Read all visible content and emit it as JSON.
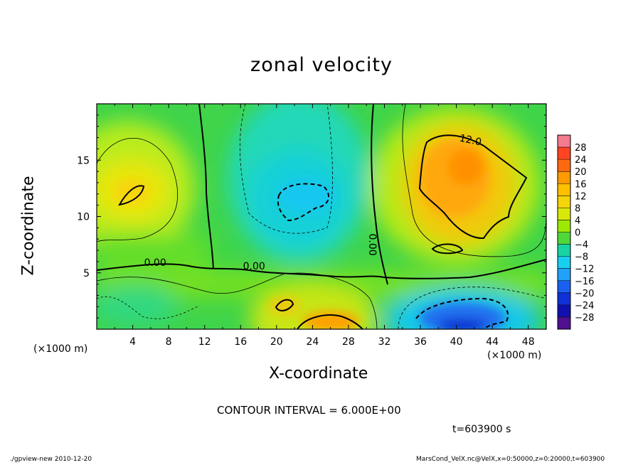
{
  "chart_data": {
    "type": "heatmap",
    "title": "zonal velocity",
    "xlabel": "X-coordinate",
    "ylabel": "Z-coordinate",
    "x_unit_label": "(×1000 m)",
    "x_ticks": [
      4,
      8,
      12,
      16,
      20,
      24,
      28,
      32,
      36,
      40,
      44,
      48
    ],
    "y_ticks": [
      5,
      10,
      15
    ],
    "xlim": [
      0,
      50
    ],
    "ylim": [
      0,
      20
    ],
    "colorbar_levels": [
      28,
      24,
      20,
      16,
      12,
      8,
      4,
      0,
      -4,
      -8,
      -12,
      -16,
      -20,
      -24,
      -28
    ],
    "colorbar_colors": [
      "#f47a8e",
      "#ff4422",
      "#ff6a10",
      "#ff9a00",
      "#ffc000",
      "#f5d40a",
      "#d9e80a",
      "#9ee805",
      "#4fd83a",
      "#18d3a4",
      "#18cff0",
      "#20a0f8",
      "#1860f0",
      "#1030d8",
      "#1010b0",
      "#501090"
    ],
    "contour_labels": [
      {
        "text": "0.00",
        "x": 6.5,
        "z": 5.6
      },
      {
        "text": "0.00",
        "x": 17.5,
        "z": 5.3
      },
      {
        "text": "0.00",
        "x": 30.3,
        "z": 7.5
      },
      {
        "text": "12.0",
        "x": 41.5,
        "z": 16.5
      }
    ],
    "features": [
      {
        "name": "warm-core-east",
        "x": 41.5,
        "z": 13.5,
        "value": 14
      },
      {
        "name": "warm-patch-west",
        "x": 4.2,
        "z": 12.3,
        "value": 10
      },
      {
        "name": "cold-core-center",
        "x": 22.5,
        "z": 11.3,
        "value": -9
      },
      {
        "name": "cold-core-bottom-east",
        "x": 41,
        "z": 1.0,
        "value": -18
      },
      {
        "name": "warm-core-bottom",
        "x": 26,
        "z": 0.6,
        "value": 15
      }
    ]
  },
  "annotations": {
    "x_unit_left": "(×1000 m)",
    "x_unit_right": "(×1000 m)",
    "contour_interval": "CONTOUR INTERVAL = 6.000E+00",
    "time": "t=603900 s",
    "footer_left": "./gpview-new   2010-12-20",
    "footer_right": "MarsCond_VelX.nc@VelX,x=0:50000,z=0:20000,t=603900"
  }
}
